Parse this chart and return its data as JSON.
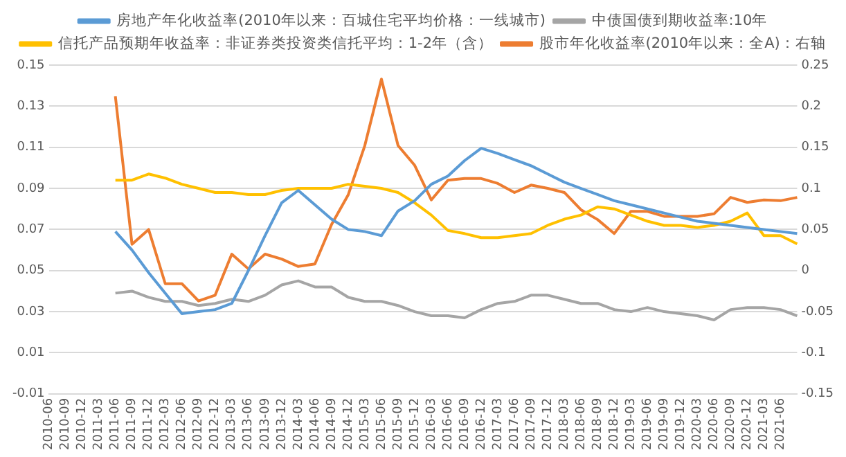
{
  "chart_data": {
    "type": "line",
    "categories": [
      "2010-06",
      "2010-09",
      "2010-12",
      "2011-03",
      "2011-06",
      "2011-09",
      "2011-12",
      "2012-03",
      "2012-06",
      "2012-09",
      "2012-12",
      "2013-03",
      "2013-06",
      "2013-09",
      "2013-12",
      "2014-03",
      "2014-06",
      "2014-09",
      "2014-12",
      "2015-03",
      "2015-06",
      "2015-09",
      "2015-12",
      "2016-03",
      "2016-06",
      "2016-09",
      "2016-12",
      "2017-03",
      "2017-06",
      "2017-09",
      "2017-12",
      "2018-03",
      "2018-06",
      "2018-09",
      "2018-12",
      "2019-03",
      "2019-06",
      "2019-09",
      "2019-12",
      "2020-03",
      "2020-06",
      "2020-09",
      "2020-12",
      "2021-03",
      "2021-06",
      null
    ],
    "series": [
      {
        "name": "房地产年化收益率(2010年以来：百城住宅平均价格：一线城市)",
        "color": "#5b9bd5",
        "values": [
          null,
          null,
          null,
          null,
          0.069,
          0.06,
          0.049,
          0.039,
          0.029,
          0.03,
          0.031,
          0.034,
          0.05,
          0.067,
          0.083,
          0.089,
          0.082,
          0.075,
          0.07,
          0.069,
          0.067,
          0.079,
          0.084,
          0.092,
          0.096,
          0.1035,
          0.1095,
          0.107,
          0.104,
          0.101,
          0.097,
          0.093,
          0.09,
          0.087,
          0.084,
          0.082,
          0.08,
          0.078,
          0.076,
          0.074,
          0.073,
          0.072,
          0.071,
          0.07,
          0.069,
          0.068
        ]
      },
      {
        "name": "中债国债到期收益率:10年",
        "color": "#a5a5a5",
        "values": [
          null,
          null,
          null,
          null,
          0.039,
          0.04,
          0.037,
          0.035,
          0.035,
          0.033,
          0.034,
          0.036,
          0.035,
          0.038,
          0.043,
          0.045,
          0.042,
          0.042,
          0.037,
          0.035,
          0.035,
          0.033,
          0.03,
          0.028,
          0.028,
          0.027,
          0.031,
          0.034,
          0.035,
          0.038,
          0.038,
          0.036,
          0.034,
          0.034,
          0.031,
          0.03,
          0.032,
          0.03,
          0.029,
          0.028,
          0.026,
          0.031,
          0.032,
          0.032,
          0.031,
          0.028
        ]
      },
      {
        "name": "信托产品预期年收益率：非证券类投资类信托平均：1-2年（含）",
        "color": "#ffc000",
        "values": [
          null,
          null,
          null,
          null,
          0.094,
          0.094,
          0.097,
          0.095,
          0.092,
          0.09,
          0.088,
          0.088,
          0.087,
          0.087,
          0.089,
          0.09,
          0.09,
          0.09,
          0.092,
          0.091,
          0.09,
          0.088,
          0.083,
          0.077,
          0.0695,
          0.068,
          0.066,
          0.066,
          0.067,
          0.068,
          0.072,
          0.075,
          0.077,
          0.081,
          0.08,
          0.077,
          0.074,
          0.072,
          0.072,
          0.071,
          0.072,
          0.074,
          0.078,
          0.067,
          0.067,
          0.063
        ]
      },
      {
        "name": "股市年化收益率(2010年以来：全A)：右轴",
        "color": "#ed7d31",
        "axis": "y2",
        "values": [
          null,
          null,
          null,
          null,
          0.212,
          0.032,
          0.05,
          -0.016,
          -0.016,
          -0.037,
          -0.03,
          0.02,
          0.002,
          0.02,
          0.014,
          0.005,
          0.008,
          0.056,
          0.092,
          0.152,
          0.233,
          0.152,
          0.128,
          0.086,
          0.11,
          0.112,
          0.112,
          0.106,
          0.095,
          0.104,
          0.1,
          0.095,
          0.074,
          0.062,
          0.045,
          0.072,
          0.072,
          0.066,
          0.066,
          0.066,
          0.069,
          0.089,
          0.083,
          0.086,
          0.085,
          0.089
        ]
      }
    ],
    "ylim": [
      -0.01,
      0.15
    ],
    "yticks": [
      -0.01,
      0.01,
      0.03,
      0.05,
      0.07,
      0.09,
      0.11,
      0.13,
      0.15
    ],
    "y2lim": [
      -0.15,
      0.25
    ],
    "y2ticks": [
      -0.15,
      -0.1,
      -0.05,
      0,
      0.05,
      0.1,
      0.15,
      0.2,
      0.25
    ],
    "grid": "y",
    "legend": "top",
    "marker": "none",
    "line_style": "solid"
  }
}
